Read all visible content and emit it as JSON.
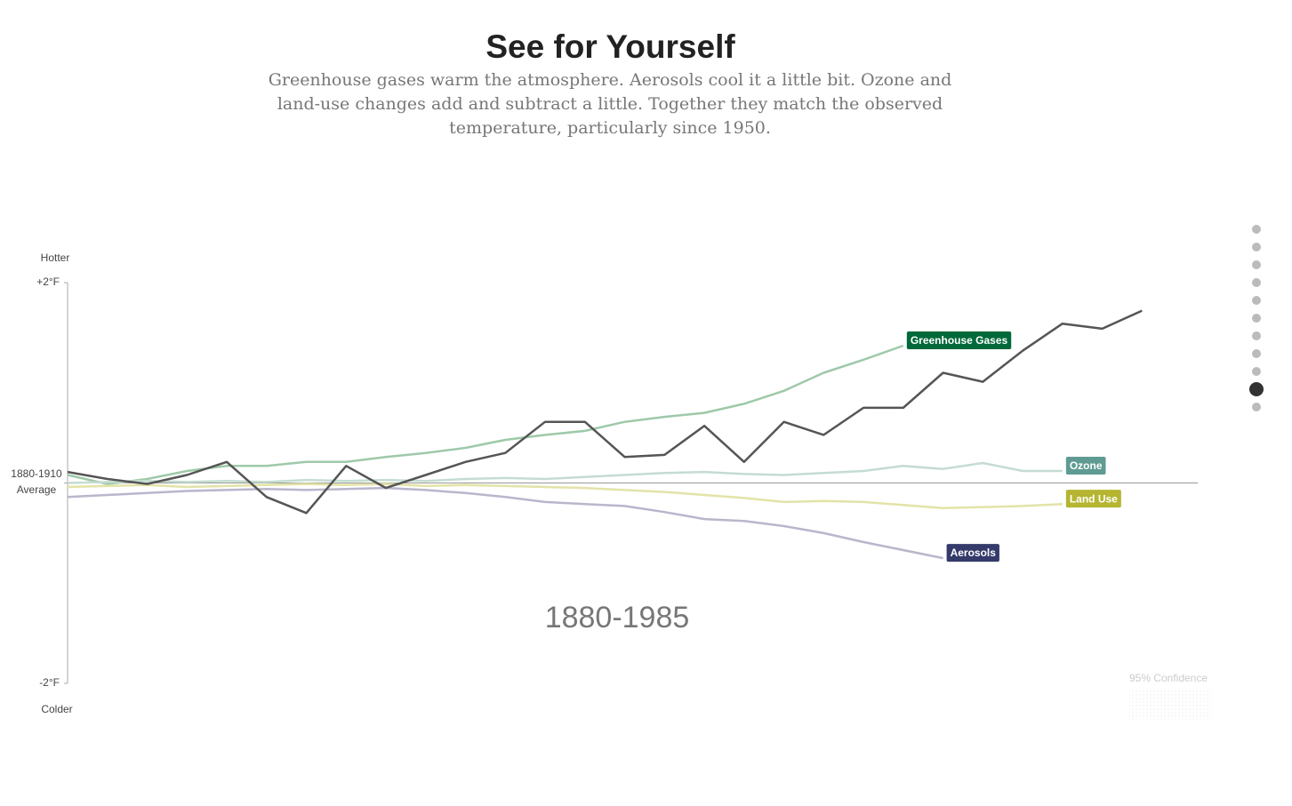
{
  "chart_data": {
    "type": "line",
    "title": "See for Yourself",
    "subtitle": "Greenhouse gases warm the atmosphere. Aerosols cool it a little bit. Ozone and land-use changes add and subtract a little. Together they match the observed temperature, particularly since 1950.",
    "upper_label": "Hotter",
    "lower_label": "Colder",
    "period_label": "1880-1985",
    "confidence_label": "95% Confidence",
    "x": [
      1880,
      1885,
      1890,
      1895,
      1900,
      1905,
      1910,
      1915,
      1920,
      1925,
      1930,
      1935,
      1940,
      1945,
      1950,
      1955,
      1960,
      1965,
      1970,
      1975,
      1980,
      1985,
      1990,
      1995,
      2000,
      2005,
      2010,
      2015
    ],
    "xlim": [
      1880,
      2022
    ],
    "ylim": [
      -2,
      2
    ],
    "yticks": [
      {
        "value": 2,
        "label": "+2°F"
      },
      {
        "value": 0,
        "label": "1880-1910 Average"
      },
      {
        "value": -2,
        "label": "-2°F"
      }
    ],
    "series": [
      {
        "name": "Greenhouse Gases",
        "color": "#9ec9a9",
        "label_color": "#00693a",
        "values": [
          0.08,
          -0.01,
          0.04,
          0.12,
          0.17,
          0.17,
          0.21,
          0.21,
          0.26,
          0.3,
          0.35,
          0.43,
          0.48,
          0.52,
          0.61,
          0.66,
          0.7,
          0.79,
          0.92,
          1.1,
          1.23,
          1.37,
          null,
          null,
          null,
          null,
          null,
          null
        ]
      },
      {
        "name": "Ozone",
        "color": "#c4dcd1",
        "label_color": "#5f9b92",
        "values": [
          0,
          0.01,
          0.02,
          0.01,
          0.02,
          0.01,
          0.03,
          0.02,
          0.03,
          0.02,
          0.04,
          0.05,
          0.04,
          0.06,
          0.08,
          0.1,
          0.11,
          0.09,
          0.08,
          0.1,
          0.12,
          0.17,
          0.14,
          0.2,
          0.12,
          0.12,
          null,
          null
        ]
      },
      {
        "name": "Land Use",
        "color": "#e3e3a8",
        "label_color": "#b5b531",
        "values": [
          -0.04,
          -0.03,
          -0.02,
          -0.04,
          -0.03,
          -0.02,
          -0.01,
          -0.02,
          -0.01,
          -0.03,
          -0.02,
          -0.03,
          -0.04,
          -0.05,
          -0.07,
          -0.09,
          -0.12,
          -0.15,
          -0.19,
          -0.18,
          -0.19,
          -0.22,
          -0.25,
          -0.24,
          -0.23,
          -0.21,
          null,
          null
        ]
      },
      {
        "name": "Aerosols",
        "color": "#b9b6cc",
        "label_color": "#343a6a",
        "values": [
          -0.14,
          -0.12,
          -0.1,
          -0.08,
          -0.07,
          -0.06,
          -0.07,
          -0.06,
          -0.05,
          -0.07,
          -0.1,
          -0.14,
          -0.19,
          -0.21,
          -0.23,
          -0.29,
          -0.36,
          -0.38,
          -0.43,
          -0.5,
          -0.59,
          -0.67,
          -0.75,
          null,
          null,
          null,
          null,
          null
        ]
      },
      {
        "color": "#555555",
        "values": [
          0.11,
          0.04,
          -0.01,
          0.08,
          0.21,
          -0.14,
          -0.3,
          0.17,
          -0.05,
          0.08,
          0.21,
          0.3,
          0.61,
          0.61,
          0.26,
          0.28,
          0.57,
          0.21,
          0.61,
          0.48,
          0.75,
          0.75,
          1.1,
          1.01,
          1.32,
          1.59,
          1.54,
          1.72
        ]
      }
    ]
  }
}
